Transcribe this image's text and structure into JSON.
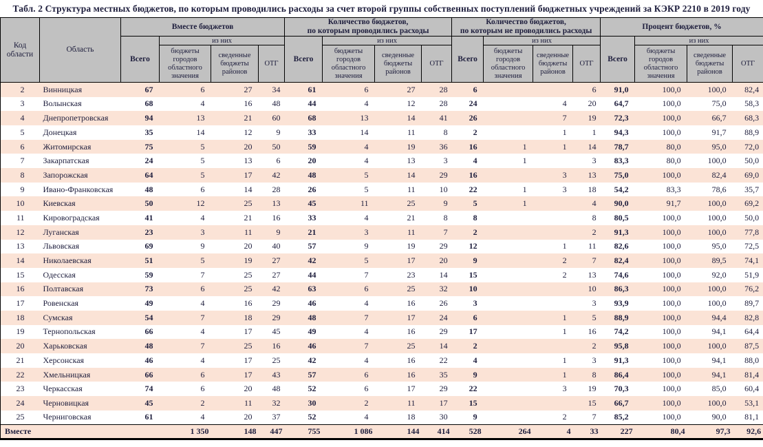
{
  "title": "Табл. 2 Структура местных бюджетов, по которым проводились расходы за счет второй группы собственных поступлений бюджетных учреждений за КЭКР 2210 в 2019 году",
  "header": {
    "code": "Код области",
    "region": "Область",
    "total": "Всего",
    "of_them": "из них",
    "sub": [
      "бюджеты городов областного значения",
      "сведенные бюджеты районов",
      "ОТГ"
    ],
    "groups": [
      "Вместе бюджетов",
      "Количество бюджетов,\nпо которым проводились расходы",
      "Количество бюджетов,\nпо которым не проводились расходы",
      "Процент бюджетов, %"
    ]
  },
  "colors": {
    "header_bg": "#c1c1c1",
    "band_bg": "#fbe3d6",
    "text": "#1d1d3c",
    "border": "#000000"
  },
  "rows": [
    {
      "code": "2",
      "region": "Винницкая",
      "values": [
        "67",
        "6",
        "27",
        "34",
        "61",
        "6",
        "27",
        "28",
        "6",
        "",
        "",
        "6",
        "91,0",
        "100,0",
        "100,0",
        "82,4"
      ]
    },
    {
      "code": "3",
      "region": "Волынская",
      "values": [
        "68",
        "4",
        "16",
        "48",
        "44",
        "4",
        "12",
        "28",
        "24",
        "",
        "4",
        "20",
        "64,7",
        "100,0",
        "75,0",
        "58,3"
      ]
    },
    {
      "code": "4",
      "region": "Днепропетровская",
      "values": [
        "94",
        "13",
        "21",
        "60",
        "68",
        "13",
        "14",
        "41",
        "26",
        "",
        "7",
        "19",
        "72,3",
        "100,0",
        "66,7",
        "68,3"
      ]
    },
    {
      "code": "5",
      "region": "Донецкая",
      "values": [
        "35",
        "14",
        "12",
        "9",
        "33",
        "14",
        "11",
        "8",
        "2",
        "",
        "1",
        "1",
        "94,3",
        "100,0",
        "91,7",
        "88,9"
      ]
    },
    {
      "code": "6",
      "region": "Житомирская",
      "values": [
        "75",
        "5",
        "20",
        "50",
        "59",
        "4",
        "19",
        "36",
        "16",
        "1",
        "1",
        "14",
        "78,7",
        "80,0",
        "95,0",
        "72,0"
      ]
    },
    {
      "code": "7",
      "region": "Закарпатская",
      "values": [
        "24",
        "5",
        "13",
        "6",
        "20",
        "4",
        "13",
        "3",
        "4",
        "1",
        "",
        "3",
        "83,3",
        "80,0",
        "100,0",
        "50,0"
      ]
    },
    {
      "code": "8",
      "region": "Запорожская",
      "values": [
        "64",
        "5",
        "17",
        "42",
        "48",
        "5",
        "14",
        "29",
        "16",
        "",
        "3",
        "13",
        "75,0",
        "100,0",
        "82,4",
        "69,0"
      ]
    },
    {
      "code": "9",
      "region": "Ивано-Франковская",
      "values": [
        "48",
        "6",
        "14",
        "28",
        "26",
        "5",
        "11",
        "10",
        "22",
        "1",
        "3",
        "18",
        "54,2",
        "83,3",
        "78,6",
        "35,7"
      ]
    },
    {
      "code": "10",
      "region": "Киевская",
      "values": [
        "50",
        "12",
        "25",
        "13",
        "45",
        "11",
        "25",
        "9",
        "5",
        "1",
        "",
        "4",
        "90,0",
        "91,7",
        "100,0",
        "69,2"
      ]
    },
    {
      "code": "11",
      "region": "Кировоградская",
      "values": [
        "41",
        "4",
        "21",
        "16",
        "33",
        "4",
        "21",
        "8",
        "8",
        "",
        "",
        "8",
        "80,5",
        "100,0",
        "100,0",
        "50,0"
      ]
    },
    {
      "code": "12",
      "region": "Луганская",
      "values": [
        "23",
        "3",
        "11",
        "9",
        "21",
        "3",
        "11",
        "7",
        "2",
        "",
        "",
        "2",
        "91,3",
        "100,0",
        "100,0",
        "77,8"
      ]
    },
    {
      "code": "13",
      "region": "Львовская",
      "values": [
        "69",
        "9",
        "20",
        "40",
        "57",
        "9",
        "19",
        "29",
        "12",
        "",
        "1",
        "11",
        "82,6",
        "100,0",
        "95,0",
        "72,5"
      ]
    },
    {
      "code": "14",
      "region": "Николаевская",
      "values": [
        "51",
        "5",
        "19",
        "27",
        "42",
        "5",
        "17",
        "20",
        "9",
        "",
        "2",
        "7",
        "82,4",
        "100,0",
        "89,5",
        "74,1"
      ]
    },
    {
      "code": "15",
      "region": "Одесская",
      "values": [
        "59",
        "7",
        "25",
        "27",
        "44",
        "7",
        "23",
        "14",
        "15",
        "",
        "2",
        "13",
        "74,6",
        "100,0",
        "92,0",
        "51,9"
      ]
    },
    {
      "code": "16",
      "region": "Полтавская",
      "values": [
        "73",
        "6",
        "25",
        "42",
        "63",
        "6",
        "25",
        "32",
        "10",
        "",
        "",
        "10",
        "86,3",
        "100,0",
        "100,0",
        "76,2"
      ]
    },
    {
      "code": "17",
      "region": "Ровенская",
      "values": [
        "49",
        "4",
        "16",
        "29",
        "46",
        "4",
        "16",
        "26",
        "3",
        "",
        "",
        "3",
        "93,9",
        "100,0",
        "100,0",
        "89,7"
      ]
    },
    {
      "code": "18",
      "region": "Сумская",
      "values": [
        "54",
        "7",
        "18",
        "29",
        "48",
        "7",
        "17",
        "24",
        "6",
        "",
        "1",
        "5",
        "88,9",
        "100,0",
        "94,4",
        "82,8"
      ]
    },
    {
      "code": "19",
      "region": "Тернопольская",
      "values": [
        "66",
        "4",
        "17",
        "45",
        "49",
        "4",
        "16",
        "29",
        "17",
        "",
        "1",
        "16",
        "74,2",
        "100,0",
        "94,1",
        "64,4"
      ]
    },
    {
      "code": "20",
      "region": "Харьковская",
      "values": [
        "48",
        "7",
        "25",
        "16",
        "46",
        "7",
        "25",
        "14",
        "2",
        "",
        "",
        "2",
        "95,8",
        "100,0",
        "100,0",
        "87,5"
      ]
    },
    {
      "code": "21",
      "region": "Херсонская",
      "values": [
        "46",
        "4",
        "17",
        "25",
        "42",
        "4",
        "16",
        "22",
        "4",
        "",
        "1",
        "3",
        "91,3",
        "100,0",
        "94,1",
        "88,0"
      ]
    },
    {
      "code": "22",
      "region": "Хмельницкая",
      "values": [
        "66",
        "6",
        "17",
        "43",
        "57",
        "6",
        "16",
        "35",
        "9",
        "",
        "1",
        "8",
        "86,4",
        "100,0",
        "94,1",
        "81,4"
      ]
    },
    {
      "code": "23",
      "region": "Черкасская",
      "values": [
        "74",
        "6",
        "20",
        "48",
        "52",
        "6",
        "17",
        "29",
        "22",
        "",
        "3",
        "19",
        "70,3",
        "100,0",
        "85,0",
        "60,4"
      ]
    },
    {
      "code": "24",
      "region": "Черновицкая",
      "values": [
        "45",
        "2",
        "11",
        "32",
        "30",
        "2",
        "11",
        "17",
        "15",
        "",
        "",
        "15",
        "66,7",
        "100,0",
        "100,0",
        "53,1"
      ]
    },
    {
      "code": "25",
      "region": "Черниговская",
      "values": [
        "61",
        "4",
        "20",
        "37",
        "52",
        "4",
        "18",
        "30",
        "9",
        "",
        "2",
        "7",
        "85,2",
        "100,0",
        "90,0",
        "81,1"
      ]
    }
  ],
  "totals": {
    "label": "Вместе",
    "values": [
      "",
      "1 350",
      "148",
      "447",
      "755",
      "1 086",
      "144",
      "414",
      "528",
      "264",
      "4",
      "33",
      "227",
      "80,4",
      "97,3",
      "92,6"
    ]
  }
}
